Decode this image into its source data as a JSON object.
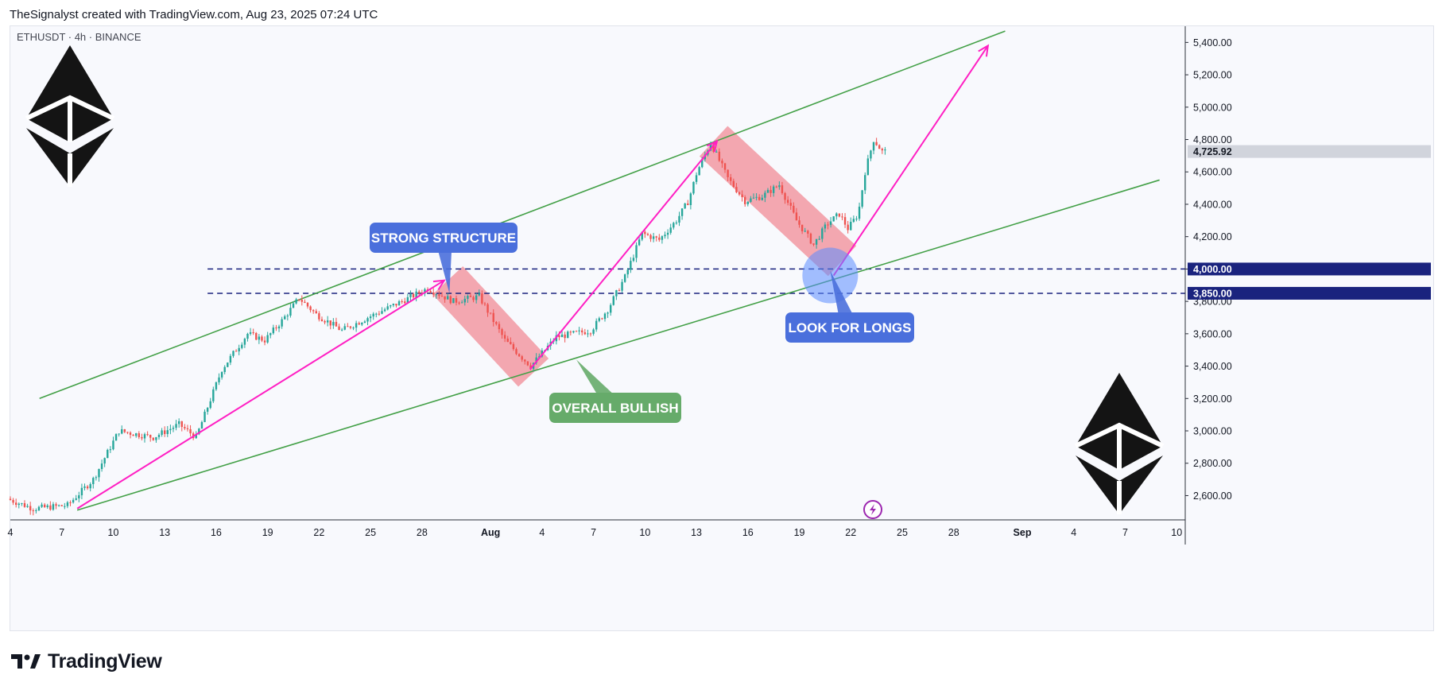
{
  "caption": "TheSignalyst created with TradingView.com, Aug 23, 2025 07:24 UTC",
  "symbol_label": "ETHUSDT · 4h · BINANCE",
  "brand": "TradingView",
  "icons": [
    "ethereum-logo-icon",
    "tradingview-logo-icon",
    "lightning-icon"
  ],
  "colors": {
    "up": "#26a69a",
    "down": "#ef5350",
    "channel": "#43a047",
    "arrow": "#ff1fc3",
    "zone": "#f28b95",
    "callout_blue": "#4a6fdc",
    "callout_green": "#66ab6a",
    "level": "#1a237e"
  },
  "chart_data": {
    "type": "candlestick",
    "timeframe": "4h",
    "x_ticks": [
      {
        "label": "4",
        "day": 4
      },
      {
        "label": "7",
        "day": 7
      },
      {
        "label": "10",
        "day": 10
      },
      {
        "label": "13",
        "day": 13
      },
      {
        "label": "16",
        "day": 16
      },
      {
        "label": "19",
        "day": 19
      },
      {
        "label": "22",
        "day": 22
      },
      {
        "label": "25",
        "day": 25
      },
      {
        "label": "28",
        "day": 28
      },
      {
        "label": "Aug",
        "day": 32
      },
      {
        "label": "4",
        "day": 35
      },
      {
        "label": "7",
        "day": 38
      },
      {
        "label": "10",
        "day": 41
      },
      {
        "label": "13",
        "day": 44
      },
      {
        "label": "16",
        "day": 47
      },
      {
        "label": "19",
        "day": 50
      },
      {
        "label": "22",
        "day": 53
      },
      {
        "label": "25",
        "day": 56
      },
      {
        "label": "28",
        "day": 59
      },
      {
        "label": "Sep",
        "day": 63
      },
      {
        "label": "4",
        "day": 66
      },
      {
        "label": "7",
        "day": 69
      },
      {
        "label": "10",
        "day": 72
      }
    ],
    "xlim": [
      4,
      72.5
    ],
    "ylim": [
      2450,
      5500
    ],
    "y_ticks": [
      "2,600.00",
      "2,800.00",
      "3,000.00",
      "3,200.00",
      "3,400.00",
      "3,600.00",
      "3,800.00",
      "4,000.00",
      "4,200.00",
      "4,400.00",
      "4,600.00",
      "4,800.00",
      "5,000.00",
      "5,200.00",
      "5,400.00"
    ],
    "price_path": [
      [
        4.0,
        2580
      ],
      [
        5.5,
        2520
      ],
      [
        7.5,
        2540
      ],
      [
        9.0,
        2700
      ],
      [
        10.5,
        3000
      ],
      [
        12.5,
        2960
      ],
      [
        14.0,
        3040
      ],
      [
        15.0,
        2960
      ],
      [
        16.5,
        3380
      ],
      [
        18.0,
        3600
      ],
      [
        19.0,
        3560
      ],
      [
        20.0,
        3680
      ],
      [
        21.0,
        3820
      ],
      [
        22.0,
        3720
      ],
      [
        23.5,
        3620
      ],
      [
        25.0,
        3700
      ],
      [
        27.0,
        3800
      ],
      [
        28.5,
        3880
      ],
      [
        30.0,
        3800
      ],
      [
        31.5,
        3830
      ],
      [
        33.0,
        3560
      ],
      [
        34.5,
        3400
      ],
      [
        36.0,
        3580
      ],
      [
        38.0,
        3620
      ],
      [
        39.0,
        3750
      ],
      [
        40.0,
        3950
      ],
      [
        41.0,
        4220
      ],
      [
        42.0,
        4180
      ],
      [
        43.0,
        4300
      ],
      [
        43.7,
        4420
      ],
      [
        44.2,
        4600
      ],
      [
        45.0,
        4780
      ],
      [
        46.0,
        4560
      ],
      [
        47.0,
        4420
      ],
      [
        48.0,
        4450
      ],
      [
        49.0,
        4520
      ],
      [
        50.0,
        4300
      ],
      [
        51.0,
        4150
      ],
      [
        51.8,
        4280
      ],
      [
        52.5,
        4340
      ],
      [
        53.0,
        4250
      ],
      [
        53.6,
        4340
      ],
      [
        54.0,
        4600
      ],
      [
        54.5,
        4800
      ],
      [
        55.0,
        4725.92
      ]
    ],
    "last_price": "4,725.92",
    "levels": [
      {
        "label": "4,000.00",
        "price": 4000
      },
      {
        "label": "3,850.00",
        "price": 3850
      }
    ],
    "channel": {
      "upper": [
        [
          5.7,
          3200
        ],
        [
          62.0,
          5470
        ]
      ],
      "lower": [
        [
          7.9,
          2510
        ],
        [
          71.0,
          4550
        ]
      ]
    },
    "arrows": [
      [
        [
          7.9,
          2520
        ],
        [
          29.3,
          3930
        ]
      ],
      [
        [
          34.3,
          3380
        ],
        [
          45.2,
          4790
        ]
      ],
      [
        [
          52.0,
          3960
        ],
        [
          61.0,
          5380
        ]
      ]
    ],
    "correction_zones": [
      {
        "start": [
          29.5,
          3930
        ],
        "end": [
          34.5,
          3360
        ]
      },
      {
        "start": [
          45.0,
          4790
        ],
        "end": [
          52.5,
          4050
        ]
      }
    ],
    "annotations": [
      {
        "text": "STRONG STRUCTURE",
        "style": "blue",
        "target": [
          29.6,
          3850
        ]
      },
      {
        "text": "OVERALL BULLISH",
        "style": "green",
        "target": [
          37.0,
          3440
        ]
      },
      {
        "text": "LOOK FOR LONGS",
        "style": "blue",
        "target": [
          51.8,
          3990
        ]
      }
    ],
    "grid": false
  }
}
